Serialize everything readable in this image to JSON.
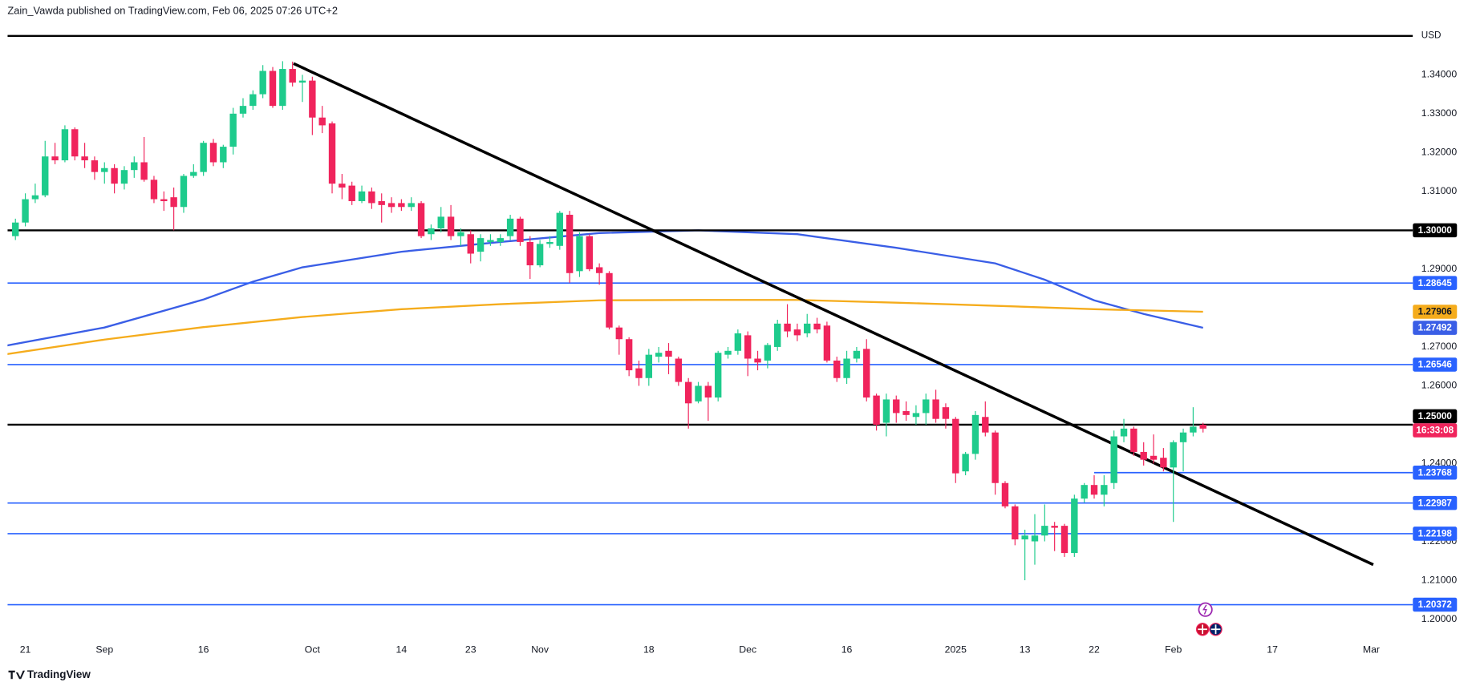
{
  "chart_data": {
    "type": "candlestick",
    "header": "Zain_Vawda published on TradingView.com, Feb 06, 2025 07:26 UTC+2",
    "currency": "USD",
    "footer": "TradingView",
    "up_color": "#1ecb8c",
    "down_color": "#f0245c",
    "xlim": [
      0.2,
      142.2
    ],
    "ylim": [
      1.194,
      1.352
    ],
    "xticks": [
      {
        "value": 2,
        "label": "21"
      },
      {
        "value": 10,
        "label": "Sep"
      },
      {
        "value": 20,
        "label": "16"
      },
      {
        "value": 31,
        "label": "Oct"
      },
      {
        "value": 40,
        "label": "14"
      },
      {
        "value": 47,
        "label": "23"
      },
      {
        "value": 54,
        "label": "Nov"
      },
      {
        "value": 65,
        "label": "18"
      },
      {
        "value": 75,
        "label": "Dec"
      },
      {
        "value": 85,
        "label": "16"
      },
      {
        "value": 96,
        "label": "2025"
      },
      {
        "value": 103,
        "label": "13"
      },
      {
        "value": 110,
        "label": "22"
      },
      {
        "value": 118,
        "label": "Feb"
      },
      {
        "value": 128,
        "label": "17"
      },
      {
        "value": 138,
        "label": "Mar"
      }
    ],
    "yticks": [
      {
        "value": 1.34,
        "label": "1.34000"
      },
      {
        "value": 1.33,
        "label": "1.33000"
      },
      {
        "value": 1.32,
        "label": "1.32000"
      },
      {
        "value": 1.31,
        "label": "1.31000"
      },
      {
        "value": 1.29,
        "label": "1.29000"
      },
      {
        "value": 1.27,
        "label": "1.27000"
      },
      {
        "value": 1.26,
        "label": "1.26000"
      },
      {
        "value": 1.24,
        "label": "1.24000"
      },
      {
        "value": 1.22,
        "label": "1.22000"
      },
      {
        "value": 1.21,
        "label": "1.21000"
      },
      {
        "value": 1.2,
        "label": "1.20000"
      }
    ],
    "x": [
      1,
      2,
      3,
      4,
      5,
      6,
      7,
      8,
      9,
      10,
      11,
      12,
      13,
      14,
      15,
      16,
      17,
      18,
      19,
      20,
      21,
      22,
      23,
      24,
      25,
      26,
      27,
      28,
      29,
      30,
      31,
      32,
      33,
      34,
      35,
      36,
      37,
      38,
      39,
      40,
      41,
      42,
      43,
      44,
      45,
      46,
      47,
      48,
      49,
      50,
      51,
      52,
      53,
      54,
      55,
      56,
      57,
      58,
      59,
      60,
      61,
      62,
      63,
      64,
      65,
      66,
      67,
      68,
      69,
      70,
      71,
      72,
      73,
      74,
      75,
      76,
      77,
      78,
      79,
      80,
      81,
      82,
      83,
      84,
      85,
      86,
      87,
      88,
      89,
      90,
      91,
      92,
      93,
      94,
      95,
      96,
      97,
      98,
      99,
      100,
      101,
      102,
      103,
      104,
      105,
      106,
      107,
      108,
      109,
      110,
      111,
      112,
      113,
      114,
      115,
      116,
      117,
      118,
      119,
      120,
      121
    ],
    "open": [
      1.2985,
      1.302,
      1.308,
      1.309,
      1.319,
      1.318,
      1.326,
      1.319,
      1.318,
      1.315,
      1.316,
      1.312,
      1.3155,
      1.3175,
      1.313,
      1.308,
      1.3085,
      1.306,
      1.314,
      1.315,
      1.3225,
      1.3175,
      1.3215,
      1.33,
      1.332,
      1.335,
      1.341,
      1.332,
      1.3415,
      1.338,
      1.3385,
      1.329,
      1.3275,
      1.312,
      1.3115,
      1.3075,
      1.31,
      1.3075,
      1.307,
      1.307,
      1.306,
      1.307,
      1.299,
      1.3005,
      1.3035,
      1.2985,
      1.299,
      1.2945,
      1.297,
      1.297,
      1.2985,
      1.303,
      1.297,
      1.291,
      1.2965,
      1.296,
      1.304,
      1.2895,
      1.2985,
      1.2905,
      1.289,
      1.275,
      1.272,
      1.2645,
      1.262,
      1.2675,
      1.269,
      1.267,
      1.261,
      1.256,
      1.26,
      1.257,
      1.268,
      1.269,
      1.273,
      1.267,
      1.2665,
      1.27,
      1.276,
      1.2745,
      1.2735,
      1.276,
      1.2755,
      1.2665,
      1.262,
      1.267,
      1.2695,
      1.2575,
      1.2505,
      1.2565,
      1.2535,
      1.252,
      1.253,
      1.2565,
      1.2545,
      1.2515,
      1.238,
      1.2425,
      1.252,
      1.248,
      1.235,
      1.229,
      1.2205,
      1.22,
      1.2215,
      1.224,
      1.224,
      1.217,
      1.231,
      1.2345,
      1.232,
      1.235,
      1.247,
      1.249,
      1.243,
      1.242,
      1.2415,
      1.239,
      1.2455,
      1.248,
      1.25
    ],
    "high": [
      1.303,
      1.3095,
      1.312,
      1.323,
      1.3225,
      1.327,
      1.3265,
      1.3225,
      1.319,
      1.3175,
      1.317,
      1.3165,
      1.319,
      1.324,
      1.314,
      1.31,
      1.311,
      1.3145,
      1.317,
      1.323,
      1.3235,
      1.322,
      1.3315,
      1.334,
      1.336,
      1.3425,
      1.342,
      1.3435,
      1.3434,
      1.34,
      1.3395,
      1.332,
      1.328,
      1.3145,
      1.3125,
      1.3115,
      1.311,
      1.3095,
      1.3085,
      1.308,
      1.3085,
      1.3075,
      1.3015,
      1.306,
      1.3065,
      1.3005,
      1.3,
      1.299,
      1.299,
      1.299,
      1.304,
      1.3035,
      1.2985,
      1.2975,
      1.2985,
      1.305,
      1.305,
      1.2995,
      1.299,
      1.2915,
      1.2895,
      1.2755,
      1.2725,
      1.2665,
      1.2695,
      1.27,
      1.271,
      1.2675,
      1.262,
      1.261,
      1.261,
      1.269,
      1.27,
      1.2745,
      1.274,
      1.269,
      1.271,
      1.277,
      1.281,
      1.276,
      1.2785,
      1.2775,
      1.2765,
      1.2675,
      1.269,
      1.27,
      1.272,
      1.258,
      1.258,
      1.2575,
      1.256,
      1.255,
      1.258,
      1.259,
      1.2555,
      1.252,
      1.243,
      1.2535,
      1.256,
      1.2485,
      1.2355,
      1.2295,
      1.223,
      1.227,
      1.2295,
      1.225,
      1.2245,
      1.232,
      1.235,
      1.237,
      1.237,
      1.2485,
      1.2515,
      1.2495,
      1.2455,
      1.2475,
      1.244,
      1.246,
      1.249,
      1.2545,
      1.2505
    ],
    "low": [
      1.2975,
      1.301,
      1.307,
      1.3085,
      1.317,
      1.3175,
      1.318,
      1.316,
      1.313,
      1.312,
      1.3095,
      1.3105,
      1.3135,
      1.3125,
      1.307,
      1.305,
      1.3,
      1.3045,
      1.3135,
      1.314,
      1.3165,
      1.316,
      1.3195,
      1.329,
      1.331,
      1.334,
      1.3315,
      1.331,
      1.337,
      1.333,
      1.3245,
      1.325,
      1.3095,
      1.308,
      1.3065,
      1.307,
      1.3055,
      1.302,
      1.3045,
      1.305,
      1.305,
      1.298,
      1.2975,
      1.2995,
      1.2975,
      1.296,
      1.2915,
      1.292,
      1.296,
      1.296,
      1.2975,
      1.296,
      1.2875,
      1.2905,
      1.2955,
      1.295,
      1.2865,
      1.288,
      1.2895,
      1.286,
      1.2745,
      1.268,
      1.2625,
      1.26,
      1.26,
      1.266,
      1.263,
      1.26,
      1.249,
      1.2555,
      1.251,
      1.256,
      1.267,
      1.268,
      1.2625,
      1.264,
      1.2645,
      1.269,
      1.2725,
      1.2715,
      1.2725,
      1.2735,
      1.266,
      1.261,
      1.2605,
      1.266,
      1.256,
      1.2485,
      1.247,
      1.2505,
      1.251,
      1.25,
      1.25,
      1.2505,
      1.249,
      1.235,
      1.237,
      1.241,
      1.247,
      1.232,
      1.2285,
      1.219,
      1.21,
      1.214,
      1.22,
      1.2175,
      1.216,
      1.216,
      1.23,
      1.231,
      1.229,
      1.2335,
      1.2455,
      1.242,
      1.2395,
      1.24,
      1.238,
      1.225,
      1.238,
      1.247,
      1.248
    ],
    "close": [
      1.302,
      1.308,
      1.309,
      1.319,
      1.318,
      1.326,
      1.319,
      1.318,
      1.315,
      1.316,
      1.312,
      1.3155,
      1.3175,
      1.313,
      1.308,
      1.3075,
      1.306,
      1.314,
      1.315,
      1.3225,
      1.3175,
      1.3215,
      1.33,
      1.332,
      1.335,
      1.341,
      1.332,
      1.3415,
      1.338,
      1.3385,
      1.329,
      1.327,
      1.312,
      1.311,
      1.3075,
      1.31,
      1.307,
      1.3065,
      1.306,
      1.306,
      1.307,
      1.2985,
      1.3005,
      1.3035,
      1.2985,
      1.2995,
      1.294,
      1.298,
      1.2975,
      1.298,
      1.303,
      1.297,
      1.291,
      1.2965,
      1.297,
      1.3045,
      1.289,
      1.2985,
      1.29,
      1.289,
      1.275,
      1.272,
      1.264,
      1.262,
      1.268,
      1.2685,
      1.2675,
      1.261,
      1.2555,
      1.26,
      1.257,
      1.2685,
      1.269,
      1.2735,
      1.267,
      1.266,
      1.2705,
      1.276,
      1.274,
      1.273,
      1.276,
      1.2745,
      1.2665,
      1.262,
      1.267,
      1.269,
      1.257,
      1.25,
      1.2565,
      1.253,
      1.2525,
      1.253,
      1.2565,
      1.2515,
      1.2515,
      1.2375,
      1.2425,
      1.2525,
      1.248,
      1.235,
      1.229,
      1.2205,
      1.2215,
      1.2215,
      1.224,
      1.2235,
      1.217,
      1.231,
      1.2345,
      1.232,
      1.2345,
      1.247,
      1.249,
      1.243,
      1.241,
      1.241,
      1.239,
      1.2455,
      1.248,
      1.2495,
      1.249
    ],
    "lines": [
      {
        "color": "#3a5ee6",
        "x": [
          0,
          10,
          20,
          25,
          30,
          40,
          50,
          60,
          70,
          80,
          90,
          100,
          105,
          110,
          115,
          121
        ],
        "values": [
          1.2703,
          1.275,
          1.2822,
          1.2868,
          1.2905,
          1.2945,
          1.297,
          1.2993,
          1.3,
          1.299,
          1.2955,
          1.2915,
          1.2873,
          1.282,
          1.2785,
          1.27492
        ],
        "tag": "1.27492"
      },
      {
        "color": "#f5ac1c",
        "x": [
          0,
          10,
          20,
          30,
          40,
          50,
          60,
          70,
          80,
          90,
          100,
          110,
          121
        ],
        "values": [
          1.2681,
          1.2719,
          1.2751,
          1.2777,
          1.2797,
          1.281,
          1.282,
          1.2821,
          1.2821,
          1.2814,
          1.2806,
          1.2797,
          1.27906
        ],
        "tag": "1.27906"
      }
    ],
    "levels": [
      {
        "value": 1.35,
        "color": "#000000"
      },
      {
        "value": 1.3,
        "label": "1.30000",
        "color": "#000000"
      },
      {
        "value": 1.28645,
        "color": "#2962ff"
      },
      {
        "value": 1.26546,
        "color": "#2962ff"
      },
      {
        "value": 1.25,
        "label": "1.25000",
        "color": "#000000"
      },
      {
        "value": 1.23768,
        "color": "#2962ff",
        "from": 110
      },
      {
        "value": 1.22987,
        "color": "#2962ff"
      },
      {
        "value": 1.22198,
        "color": "#2962ff"
      },
      {
        "value": 1.20372,
        "color": "#2962ff"
      }
    ],
    "trendline": {
      "color": "#000000",
      "x": [
        29.1,
        138.2
      ],
      "values": [
        1.3429,
        1.214
      ]
    },
    "countdown": "16:33:08"
  }
}
